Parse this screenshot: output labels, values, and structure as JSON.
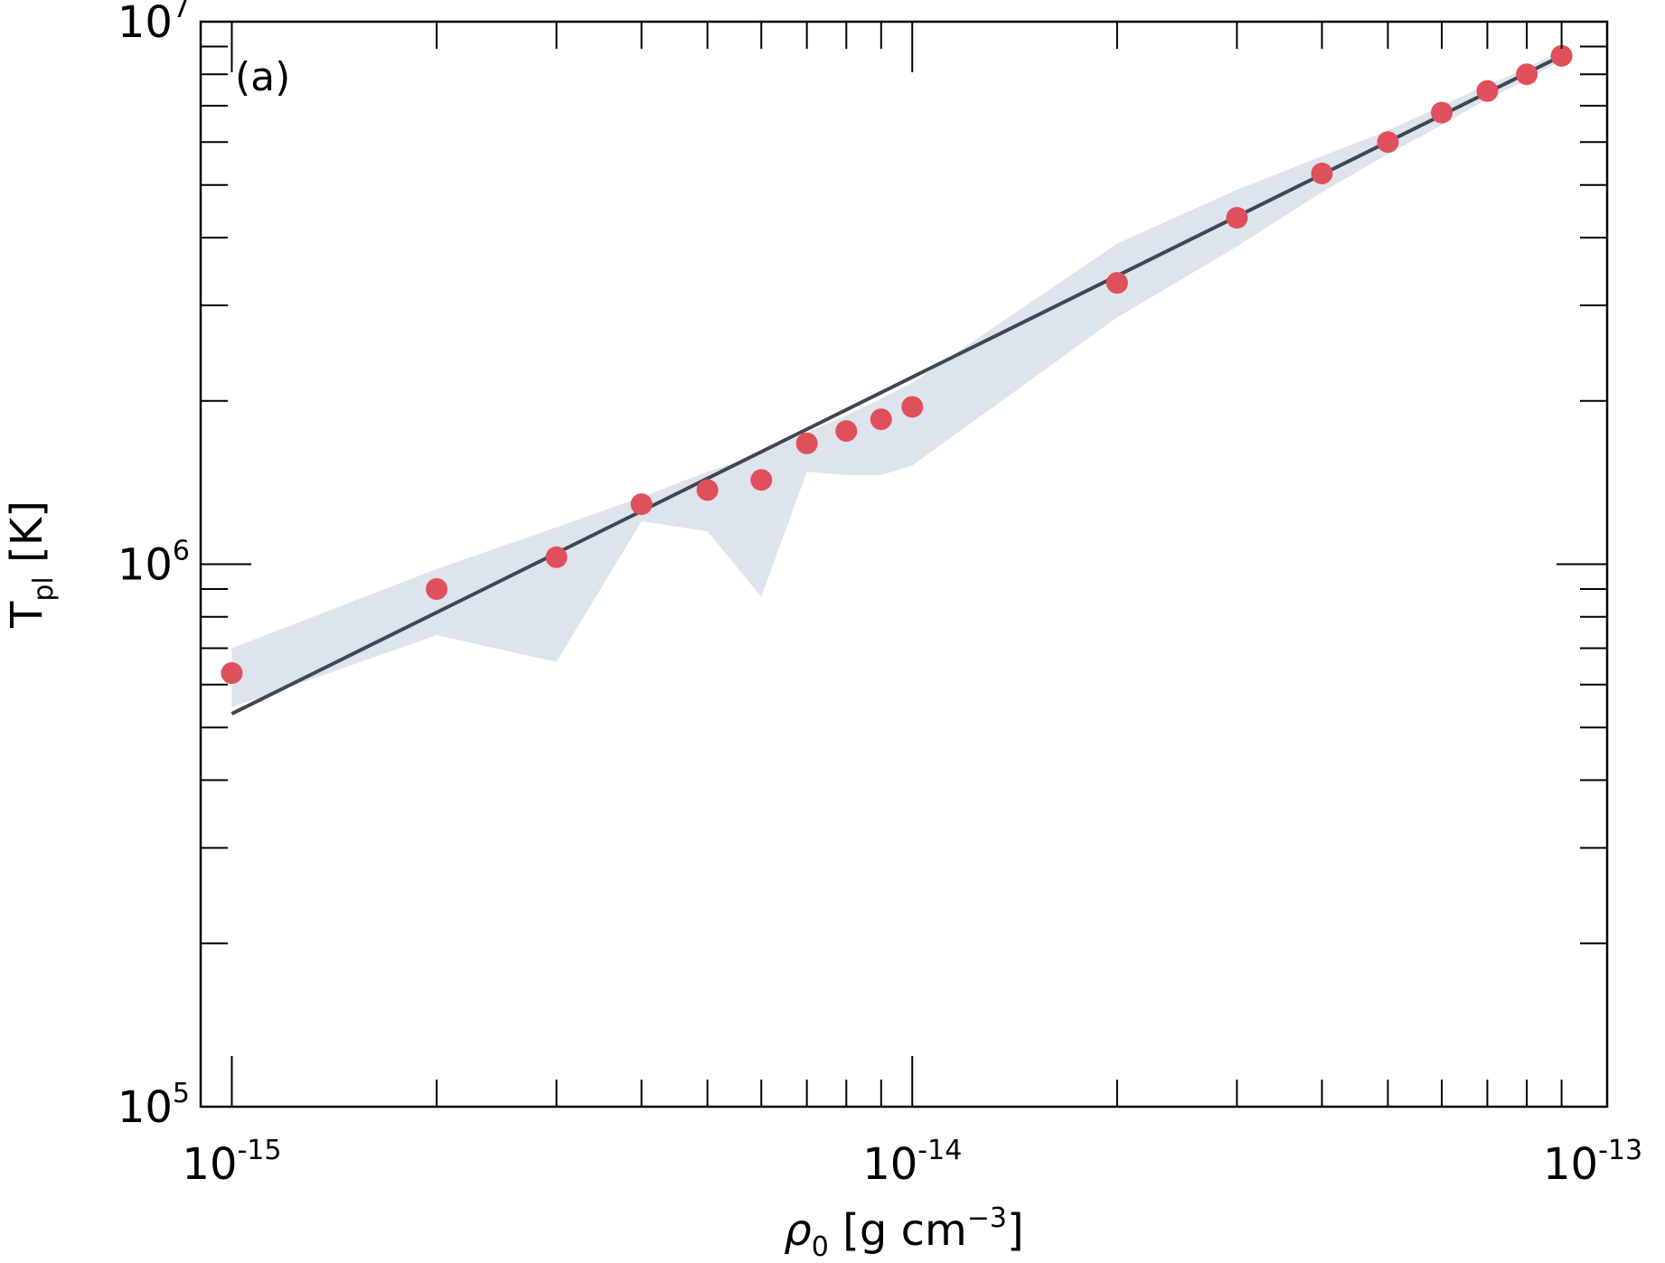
{
  "chart_data": {
    "type": "scatter",
    "panel_label": "(a)",
    "xlabel": {
      "symbol": "ρ",
      "subscript": "0",
      "unit_prefix": " [g cm",
      "unit_exponent": "−3",
      "unit_suffix": "]"
    },
    "ylabel": {
      "symbol": "T",
      "subscript": "pl",
      "unit": " [K]"
    },
    "x_scale": "log",
    "y_scale": "log",
    "xlim": [
      9e-16,
      1.05e-13
    ],
    "ylim": [
      100000,
      10000000
    ],
    "x_ticks": [
      {
        "value": 1e-15,
        "base": "10",
        "exp": "-15"
      },
      {
        "value": 1e-14,
        "base": "10",
        "exp": "-14"
      },
      {
        "value": 1e-13,
        "base": "10",
        "exp": "-13"
      }
    ],
    "y_ticks": [
      {
        "value": 100000,
        "base": "10",
        "exp": "5"
      },
      {
        "value": 1000000,
        "base": "10",
        "exp": "6"
      },
      {
        "value": 10000000,
        "base": "10",
        "exp": "7"
      }
    ],
    "grid": false,
    "points": {
      "color": "#e0505a",
      "x": [
        1e-15,
        2e-15,
        3e-15,
        4e-15,
        5e-15,
        6e-15,
        7e-15,
        8e-15,
        9e-15,
        1e-14,
        2e-14,
        3e-14,
        4e-14,
        5e-14,
        6e-14,
        7e-14,
        8e-14,
        9e-14
      ],
      "y": [
        630000,
        900000,
        1030000,
        1290000,
        1370000,
        1430000,
        1670000,
        1760000,
        1850000,
        1950000,
        3300000,
        4350000,
        5250000,
        6000000,
        6800000,
        7450000,
        8000000,
        8650000
      ]
    },
    "fit_line": {
      "color": "#3e4852",
      "x": [
        1e-15,
        9e-14
      ],
      "y": [
        530000,
        8650000
      ]
    },
    "band": {
      "color": "#dde4ee",
      "x": [
        1e-15,
        2e-15,
        3e-15,
        4e-15,
        5e-15,
        6e-15,
        7e-15,
        8e-15,
        9e-15,
        1e-14,
        2e-14,
        3e-14,
        4e-14,
        5e-14,
        6e-14,
        7e-14,
        8e-14,
        9e-14
      ],
      "upper": [
        700000,
        980000,
        1170000,
        1330000,
        1480000,
        1600000,
        1750000,
        1880000,
        2020000,
        2160000,
        3900000,
        4900000,
        5650000,
        6300000,
        7000000,
        7650000,
        8200000,
        8900000
      ],
      "lower": [
        545000,
        740000,
        660000,
        1200000,
        1150000,
        870000,
        1480000,
        1460000,
        1460000,
        1520000,
        2850000,
        3850000,
        4850000,
        5700000,
        6450000,
        7200000,
        7800000,
        8500000
      ]
    }
  }
}
